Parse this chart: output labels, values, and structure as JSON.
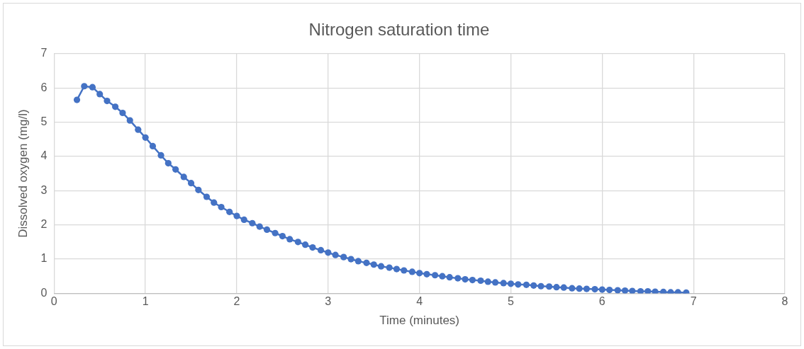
{
  "chart_data": {
    "type": "line",
    "title": "Nitrogen saturation time",
    "xlabel": "Time (minutes)",
    "ylabel": "Dissolved oxygen (mg/l)",
    "xlim": [
      0,
      8
    ],
    "xticks": [
      0,
      1,
      2,
      3,
      4,
      5,
      6,
      7,
      8
    ],
    "ylim": [
      0,
      7
    ],
    "yticks": [
      0,
      1,
      2,
      3,
      4,
      5,
      6,
      7
    ],
    "grid": true,
    "marker": "circle",
    "line_style": "solid",
    "x": [
      0.25,
      0.33,
      0.42,
      0.5,
      0.58,
      0.67,
      0.75,
      0.83,
      0.92,
      1.0,
      1.08,
      1.17,
      1.25,
      1.33,
      1.42,
      1.5,
      1.58,
      1.67,
      1.75,
      1.83,
      1.92,
      2.0,
      2.08,
      2.17,
      2.25,
      2.33,
      2.42,
      2.5,
      2.58,
      2.67,
      2.75,
      2.83,
      2.92,
      3.0,
      3.08,
      3.17,
      3.25,
      3.33,
      3.42,
      3.5,
      3.58,
      3.67,
      3.75,
      3.83,
      3.92,
      4.0,
      4.08,
      4.17,
      4.25,
      4.33,
      4.42,
      4.5,
      4.58,
      4.67,
      4.75,
      4.83,
      4.92,
      5.0,
      5.08,
      5.17,
      5.25,
      5.33,
      5.42,
      5.5,
      5.58,
      5.67,
      5.75,
      5.83,
      5.92,
      6.0,
      6.08,
      6.17,
      6.25,
      6.33,
      6.42,
      6.5,
      6.58,
      6.67,
      6.75,
      6.83,
      6.92
    ],
    "series": [
      {
        "color": "#4472c4",
        "values": [
          5.65,
          6.05,
          6.02,
          5.82,
          5.62,
          5.45,
          5.27,
          5.05,
          4.78,
          4.55,
          4.3,
          4.03,
          3.8,
          3.62,
          3.4,
          3.22,
          3.02,
          2.82,
          2.65,
          2.52,
          2.38,
          2.26,
          2.15,
          2.05,
          1.95,
          1.86,
          1.76,
          1.67,
          1.58,
          1.5,
          1.42,
          1.34,
          1.26,
          1.19,
          1.12,
          1.06,
          1.0,
          0.94,
          0.89,
          0.84,
          0.79,
          0.75,
          0.71,
          0.67,
          0.63,
          0.59,
          0.56,
          0.53,
          0.5,
          0.47,
          0.44,
          0.41,
          0.39,
          0.37,
          0.34,
          0.32,
          0.3,
          0.28,
          0.26,
          0.25,
          0.23,
          0.21,
          0.2,
          0.18,
          0.17,
          0.15,
          0.14,
          0.13,
          0.12,
          0.11,
          0.1,
          0.09,
          0.08,
          0.07,
          0.06,
          0.06,
          0.05,
          0.04,
          0.03,
          0.03,
          0.02
        ]
      }
    ]
  }
}
